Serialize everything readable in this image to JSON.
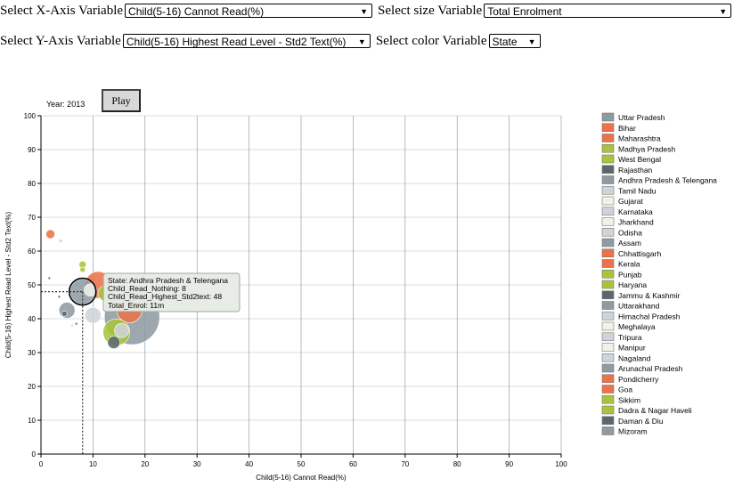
{
  "controls": {
    "x_label": "Select X-Axis Variable",
    "x_value": "Child(5-16) Cannot Read(%)",
    "size_label": "Select size Variable",
    "size_value": "Total Enrolment",
    "y_label": "Select Y-Axis Variable",
    "y_value": "Child(5-16) Highest Read Level - Std2 Text(%)",
    "color_label": "Select color Variable",
    "color_value": "State",
    "dropdown_arrow_icon": "caret-down-icon"
  },
  "year_text": "Year: 2013",
  "play_label": "Play",
  "colors": {
    "gray": "#8e9ba3",
    "orange": "#ec7348",
    "green": "#a9c43c",
    "darkgray": "#5d666d",
    "light": "#cfd4d8",
    "pale": "#eef3e6",
    "grid": "#b9b9b9",
    "vgrid": "#7c93a0"
  },
  "tooltip": {
    "line1": "State: Andhra Pradesh & Telengana",
    "line2": "Child_Read_Nothing: 8",
    "line3": "Child_Read_Highest_Std2text: 48",
    "line4": "Total_Enrol: 11m"
  },
  "chart_data": {
    "type": "scatter",
    "xlabel": "Child(5-16) Cannot Read(%)",
    "ylabel": "Child(5-16) Highest Read Level - Std2 Text(%)",
    "xlim": [
      0,
      100
    ],
    "ylim": [
      0,
      100
    ],
    "xticks": [
      0,
      10,
      20,
      30,
      40,
      50,
      60,
      70,
      80,
      90,
      100
    ],
    "yticks": [
      0,
      10,
      20,
      30,
      40,
      50,
      60,
      70,
      80,
      90,
      100
    ],
    "grid": true,
    "legend_position": "right",
    "highlight": {
      "x": 8,
      "y": 48
    },
    "points": [
      {
        "x": 17.5,
        "y": 40.5,
        "r": 31,
        "color": "gray"
      },
      {
        "x": 17.0,
        "y": 42.5,
        "r": 14,
        "color": "orange"
      },
      {
        "x": 11.0,
        "y": 50.0,
        "r": 15,
        "color": "orange"
      },
      {
        "x": 14.5,
        "y": 36.0,
        "r": 15,
        "color": "green"
      },
      {
        "x": 15.5,
        "y": 36.5,
        "r": 8,
        "color": "light"
      },
      {
        "x": 8.0,
        "y": 48.0,
        "r": 14,
        "color": "gray"
      },
      {
        "x": 10.0,
        "y": 41.0,
        "r": 9,
        "color": "light"
      },
      {
        "x": 12.5,
        "y": 47.5,
        "r": 9,
        "color": "green"
      },
      {
        "x": 9.5,
        "y": 48.5,
        "r": 7,
        "color": "pale"
      },
      {
        "x": 8.0,
        "y": 56.0,
        "r": 4,
        "color": "green"
      },
      {
        "x": 8.0,
        "y": 54.5,
        "r": 3,
        "color": "green"
      },
      {
        "x": 5.0,
        "y": 42.5,
        "r": 9,
        "color": "gray"
      },
      {
        "x": 14.0,
        "y": 33.0,
        "r": 7,
        "color": "darkgray"
      },
      {
        "x": 4.5,
        "y": 41.5,
        "r": 3,
        "color": "darkgray"
      },
      {
        "x": 1.8,
        "y": 65.0,
        "r": 5,
        "color": "orange"
      },
      {
        "x": 3.8,
        "y": 63.0,
        "r": 2,
        "color": "light"
      },
      {
        "x": 3.5,
        "y": 46.5,
        "r": 1.5,
        "color": "darkgray"
      },
      {
        "x": 1.6,
        "y": 52.0,
        "r": 1.5,
        "color": "darkgray"
      },
      {
        "x": 6.0,
        "y": 38.0,
        "r": 1.5,
        "color": "light"
      },
      {
        "x": 6.8,
        "y": 38.5,
        "r": 1.5,
        "color": "darkgray"
      },
      {
        "x": 13.0,
        "y": 47.0,
        "r": 3,
        "color": "light"
      }
    ],
    "legend": [
      {
        "name": "Uttar Pradesh",
        "color": "gray"
      },
      {
        "name": "Bihar",
        "color": "orange"
      },
      {
        "name": "Maharashtra",
        "color": "orange"
      },
      {
        "name": "Madhya Pradesh",
        "color": "green"
      },
      {
        "name": "West Bengal",
        "color": "green"
      },
      {
        "name": "Rajasthan",
        "color": "darkgray"
      },
      {
        "name": "Andhra Pradesh & Telengana",
        "color": "gray"
      },
      {
        "name": "Tamil Nadu",
        "color": "light"
      },
      {
        "name": "Gujarat",
        "color": "pale"
      },
      {
        "name": "Karnataka",
        "color": "light"
      },
      {
        "name": "Jharkhand",
        "color": "pale"
      },
      {
        "name": "Odisha",
        "color": "light"
      },
      {
        "name": "Assam",
        "color": "gray"
      },
      {
        "name": "Chhattisgarh",
        "color": "orange"
      },
      {
        "name": "Kerala",
        "color": "orange"
      },
      {
        "name": "Punjab",
        "color": "green"
      },
      {
        "name": "Haryana",
        "color": "green"
      },
      {
        "name": "Jammu & Kashmir",
        "color": "darkgray"
      },
      {
        "name": "Uttarakhand",
        "color": "gray"
      },
      {
        "name": "Himachal Pradesh",
        "color": "light"
      },
      {
        "name": "Meghalaya",
        "color": "pale"
      },
      {
        "name": "Tripura",
        "color": "light"
      },
      {
        "name": "Manipur",
        "color": "pale"
      },
      {
        "name": "Nagaland",
        "color": "light"
      },
      {
        "name": "Arunachal Pradesh",
        "color": "gray"
      },
      {
        "name": "Pondicherry",
        "color": "orange"
      },
      {
        "name": "Goa",
        "color": "orange"
      },
      {
        "name": "Sikkim",
        "color": "green"
      },
      {
        "name": "Dadra & Nagar Haveli",
        "color": "green"
      },
      {
        "name": "Daman & Diu",
        "color": "darkgray"
      },
      {
        "name": "Mizoram",
        "color": "gray"
      }
    ]
  }
}
